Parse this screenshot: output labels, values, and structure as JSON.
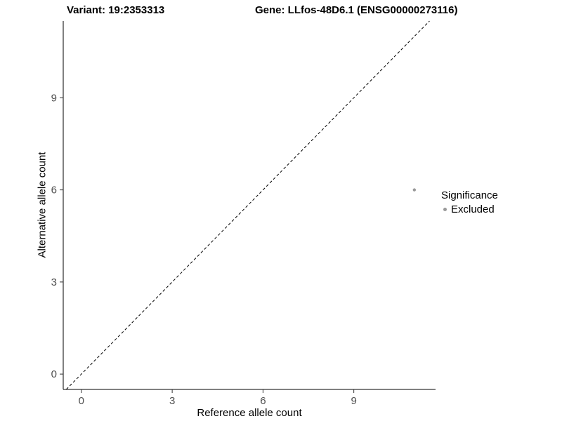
{
  "chart_data": {
    "type": "scatter",
    "title_left": "Variant: 19:2353313",
    "title_right": "Gene: LLfos-48D6.1 (ENSG00000273116)",
    "xlabel": "Reference allele count",
    "ylabel": "Alternative allele count",
    "xlim": [
      -0.6,
      11.7
    ],
    "ylim": [
      -0.5,
      11.5
    ],
    "xticks": [
      0,
      3,
      6,
      9
    ],
    "yticks": [
      0,
      3,
      6,
      9
    ],
    "grid": false,
    "points": [
      {
        "x": 11,
        "y": 6,
        "series": "Excluded"
      }
    ],
    "identity_line": {
      "style": "dashed",
      "from": [
        -0.5,
        -0.5
      ],
      "to": [
        11.5,
        11.5
      ],
      "color": "#000000"
    },
    "legend": {
      "title": "Significance",
      "position": "right",
      "items": [
        {
          "label": "Excluded",
          "color": "#999999"
        }
      ]
    },
    "colors": {
      "excluded_point": "#999999",
      "axis_line": "#000000",
      "tick_label": "#4d4d4d",
      "background": "#ffffff"
    }
  }
}
